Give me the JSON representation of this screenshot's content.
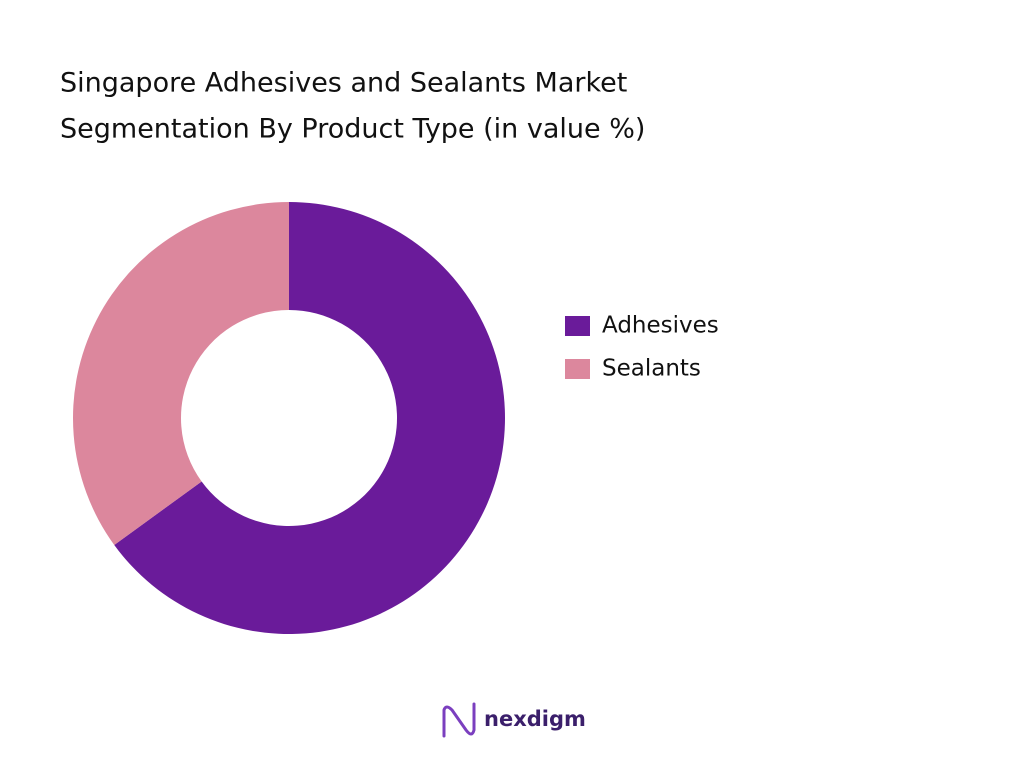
{
  "chart_data": {
    "type": "donut",
    "title": [
      "Singapore Adhesives and Sealants Market",
      "Segmentation By Product Type (in value %)"
    ],
    "categories": [
      "Adhesives",
      "Sealants"
    ],
    "values": [
      65,
      35
    ],
    "colors": [
      "#6a1b9a",
      "#dc879d"
    ],
    "legend": "right"
  },
  "logo": "nexdigm"
}
